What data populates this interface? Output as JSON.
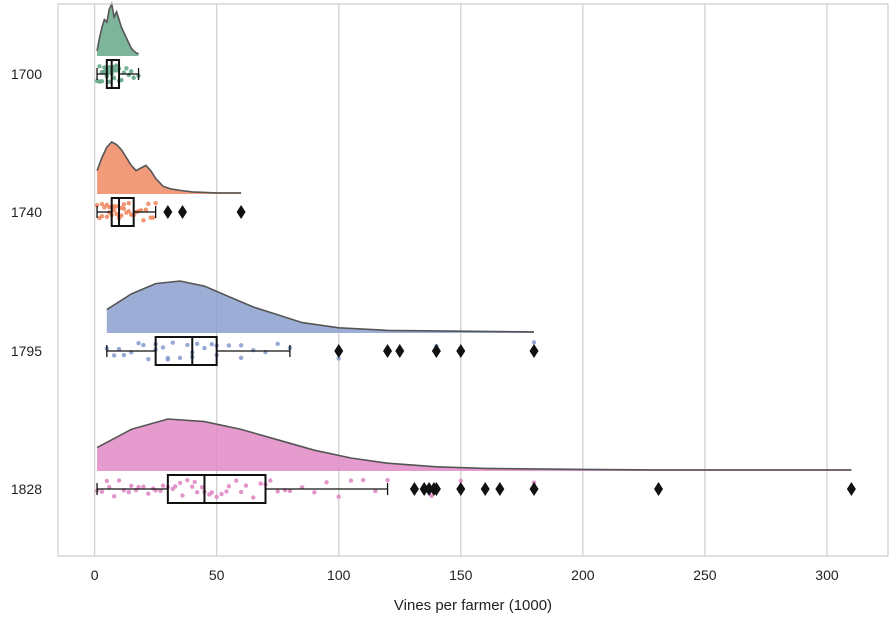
{
  "chart_data": {
    "type": "raincloud",
    "xlabel": "Vines per farmer (1000)",
    "ylabel": "",
    "xlim": [
      -15,
      325
    ],
    "xticks": [
      0,
      50,
      100,
      150,
      200,
      250,
      300
    ],
    "grid": true,
    "orientation": "horizontal",
    "categories": [
      "1700",
      "1740",
      "1795",
      "1828"
    ],
    "colors": {
      "1700": "#66a88a",
      "1740": "#f08a63",
      "1795": "#8b9fcf",
      "1828": "#e08ac4",
      "grid": "#d0d0d0",
      "frame": "#cccccc",
      "box": "#111111",
      "outline": "#555555"
    },
    "groups": [
      {
        "name": "1700",
        "box": {
          "min": 1,
          "q1": 5,
          "median": 7,
          "q3": 10,
          "max": 18
        },
        "outliers": [],
        "density": {
          "x": [
            1,
            2,
            3,
            4,
            5,
            6,
            7,
            8,
            9,
            10,
            11,
            12,
            13,
            14,
            15,
            16,
            17,
            18
          ],
          "y": [
            0.1,
            0.35,
            0.55,
            0.7,
            0.65,
            0.9,
            1.0,
            0.75,
            0.85,
            0.7,
            0.55,
            0.45,
            0.35,
            0.25,
            0.15,
            0.1,
            0.06,
            0.04
          ]
        },
        "points": [
          1,
          2,
          2,
          3,
          3,
          4,
          4,
          5,
          5,
          5,
          6,
          6,
          6,
          7,
          7,
          7,
          8,
          8,
          8,
          9,
          9,
          10,
          10,
          11,
          12,
          13,
          14,
          15,
          16,
          18
        ]
      },
      {
        "name": "1740",
        "box": {
          "min": 1,
          "q1": 7,
          "median": 10,
          "q3": 16,
          "max": 25
        },
        "outliers": [
          30,
          36,
          60
        ],
        "density": {
          "x": [
            1,
            3,
            5,
            7,
            9,
            11,
            13,
            15,
            17,
            19,
            21,
            23,
            25,
            28,
            31,
            35,
            40,
            45,
            50,
            55,
            60
          ],
          "y": [
            0.45,
            0.7,
            0.9,
            1.0,
            0.95,
            0.85,
            0.7,
            0.55,
            0.45,
            0.5,
            0.55,
            0.45,
            0.3,
            0.15,
            0.1,
            0.07,
            0.04,
            0.03,
            0.02,
            0.02,
            0.02
          ]
        },
        "points": [
          1,
          2,
          3,
          3,
          4,
          5,
          5,
          6,
          6,
          7,
          7,
          8,
          8,
          9,
          9,
          10,
          10,
          11,
          11,
          12,
          12,
          13,
          14,
          14,
          15,
          16,
          17,
          18,
          19,
          20,
          21,
          22,
          23,
          24,
          25
        ]
      },
      {
        "name": "1795",
        "box": {
          "min": 5,
          "q1": 25,
          "median": 40,
          "q3": 50,
          "max": 80
        },
        "outliers": [
          100,
          120,
          125,
          140,
          150,
          180
        ],
        "density": {
          "x": [
            5,
            15,
            25,
            35,
            45,
            55,
            65,
            75,
            85,
            100,
            120,
            140,
            160,
            180
          ],
          "y": [
            0.45,
            0.75,
            0.95,
            1.0,
            0.9,
            0.7,
            0.5,
            0.35,
            0.2,
            0.1,
            0.05,
            0.04,
            0.03,
            0.02
          ]
        },
        "points": [
          5,
          8,
          10,
          12,
          15,
          18,
          20,
          22,
          25,
          25,
          28,
          30,
          30,
          32,
          35,
          38,
          40,
          40,
          42,
          45,
          48,
          50,
          50,
          55,
          60,
          60,
          65,
          70,
          75,
          80,
          100,
          100,
          140,
          150,
          180
        ]
      },
      {
        "name": "1828",
        "box": {
          "min": 1,
          "q1": 30,
          "median": 45,
          "q3": 70,
          "max": 120
        },
        "outliers": [
          131,
          135,
          137,
          139,
          140,
          150,
          160,
          166,
          180,
          231,
          310
        ],
        "density": {
          "x": [
            1,
            15,
            30,
            45,
            60,
            75,
            90,
            105,
            120,
            140,
            160,
            180,
            200,
            230,
            260,
            310
          ],
          "y": [
            0.45,
            0.8,
            1.0,
            0.95,
            0.8,
            0.6,
            0.4,
            0.25,
            0.15,
            0.08,
            0.05,
            0.04,
            0.03,
            0.02,
            0.02,
            0.02
          ]
        },
        "points": [
          1,
          3,
          5,
          6,
          8,
          10,
          12,
          14,
          15,
          17,
          18,
          20,
          22,
          24,
          25,
          27,
          28,
          30,
          32,
          33,
          35,
          36,
          38,
          40,
          41,
          42,
          44,
          45,
          47,
          48,
          50,
          52,
          54,
          55,
          58,
          60,
          62,
          65,
          68,
          70,
          72,
          75,
          78,
          80,
          85,
          90,
          95,
          100,
          105,
          110,
          115,
          120,
          135,
          138,
          150,
          160,
          180,
          231
        ]
      }
    ]
  }
}
